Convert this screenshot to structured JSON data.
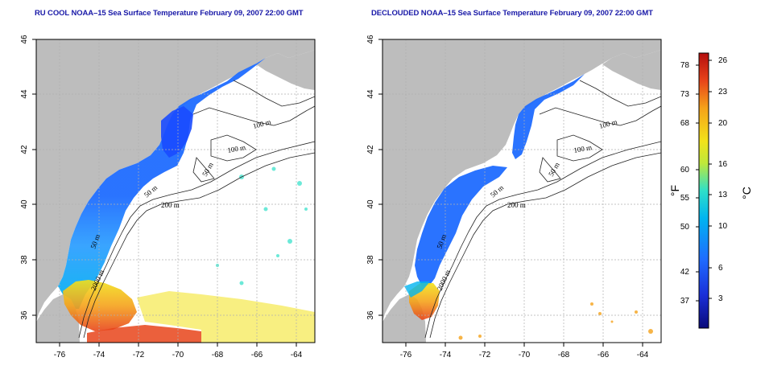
{
  "panels": [
    {
      "title": "RU COOL NOAA–15 Sea Surface Temperature February 09, 2007 22:00 GMT",
      "cloud_filter": "none"
    },
    {
      "title": "DECLOUDED NOAA–15 Sea Surface Temperature February 09, 2007 22:00 GMT",
      "cloud_filter": "declouded"
    }
  ],
  "map": {
    "lon_range": [
      -77,
      -63
    ],
    "lat_range": [
      35,
      46
    ],
    "lon_ticks": [
      "-76",
      "-74",
      "-72",
      "-70",
      "-68",
      "-66",
      "-64"
    ],
    "lat_ticks": [
      "36",
      "38",
      "40",
      "42",
      "44",
      "46"
    ],
    "contour_labels": [
      "100 m",
      "100 m",
      "50 m",
      "50 m",
      "200 m",
      "50 m",
      "2000 m"
    ],
    "colors": {
      "land": "#bdbdbd",
      "ocean": "#ffffff",
      "contour": "#222222",
      "grid": "#b0b0b0"
    }
  },
  "colorbar": {
    "fahrenheit_ticks": [
      "78",
      "73",
      "68",
      "60",
      "55",
      "50",
      "42",
      "37"
    ],
    "celsius_ticks": [
      "26",
      "23",
      "20",
      "16",
      "13",
      "10",
      "6",
      "3"
    ],
    "fahrenheit_unit": "°F",
    "celsius_unit": "°C",
    "colors": [
      "#0a0a7a",
      "#1a2fd8",
      "#1f6cff",
      "#00b4f0",
      "#2fe0c8",
      "#bfe83a",
      "#f2e21a",
      "#f5a21a",
      "#e8441a",
      "#b40e0e"
    ]
  }
}
